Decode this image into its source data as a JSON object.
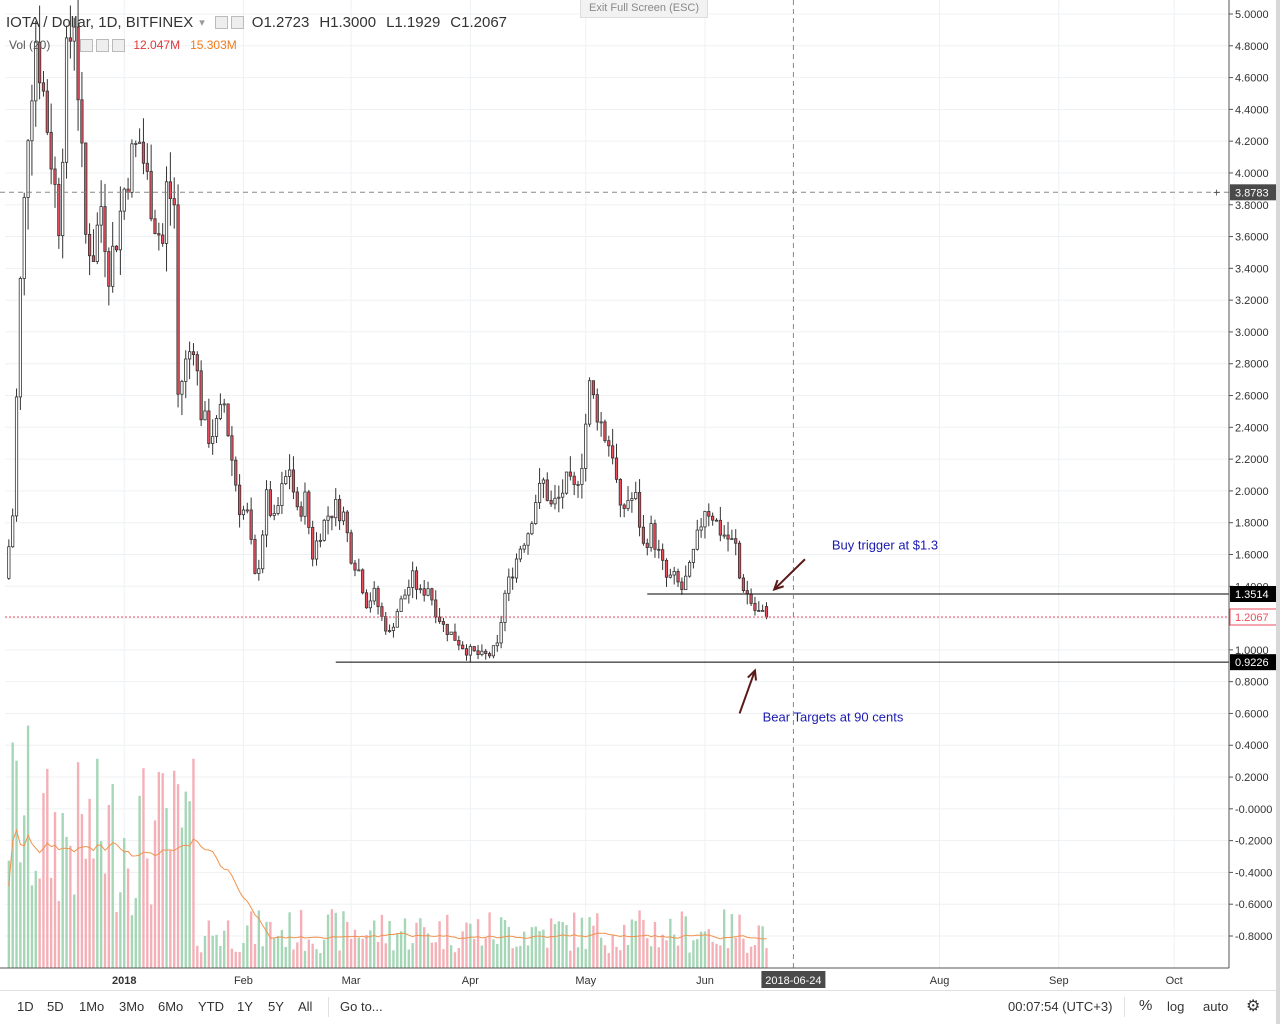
{
  "header": {
    "symbol": "IOTA / Dollar, 1D, BITFINEX",
    "open": "O1.2723",
    "high": "H1.3000",
    "low": "L1.1929",
    "close": "C1.2067"
  },
  "volume_legend": {
    "label": "Vol (20)",
    "value1": "12.047M",
    "value2": "15.303M"
  },
  "exit_fullscreen": "Exit Full Screen (ESC)",
  "bottom_bar": {
    "ranges": [
      "1D",
      "5D",
      "1Mo",
      "3Mo",
      "6Mo",
      "YTD",
      "1Y",
      "5Y",
      "All"
    ],
    "goto": "Go to...",
    "clock": "00:07:54 (UTC+3)",
    "percent": "%",
    "log": "log",
    "auto": "auto"
  },
  "colors": {
    "up": "#53b987",
    "down": "#eb4d5c",
    "candle_body_up": "#ffffff",
    "candle_outline": "#333333",
    "annotation": "#1a1ab0",
    "arrow": "#5a1a1a",
    "vol_up": "#a5d6b6",
    "vol_down": "#f4b0b6",
    "ma": "#f0924c"
  },
  "chart_data": {
    "type": "candlestick",
    "symbol": "IOTA / Dollar",
    "interval": "1D",
    "exchange": "BITFINEX",
    "y_axis_ticks": [
      "5.0000",
      "4.8000",
      "4.6000",
      "4.4000",
      "4.2000",
      "4.0000",
      "3.8000",
      "3.6000",
      "3.4000",
      "3.2000",
      "3.0000",
      "2.8000",
      "2.6000",
      "2.4000",
      "2.2000",
      "2.0000",
      "1.8000",
      "1.6000",
      "1.4000",
      "1.2000",
      "1.0000",
      "0.8000",
      "0.6000",
      "0.4000",
      "0.2000",
      "-0.0000",
      "-0.2000",
      "-0.4000",
      "-0.6000",
      "-0.8000"
    ],
    "y_axis_values": [
      5.0,
      4.8,
      4.6,
      4.4,
      4.2,
      4.0,
      3.8,
      3.6,
      3.4,
      3.2,
      3.0,
      2.8,
      2.6,
      2.4,
      2.2,
      2.0,
      1.8,
      1.6,
      1.4,
      1.2,
      1.0,
      0.8,
      0.6,
      0.4,
      0.2,
      0.0,
      -0.2,
      -0.4,
      -0.6,
      -0.8
    ],
    "ylim": [
      -0.9,
      5.05
    ],
    "x_axis_labels": [
      "2018",
      "Feb",
      "Mar",
      "Apr",
      "May",
      "Jun",
      "Aug",
      "Sep",
      "Oct"
    ],
    "x_axis_label_dates": [
      "2018-01-01",
      "2018-02-01",
      "2018-03-01",
      "2018-04-01",
      "2018-05-01",
      "2018-06-01",
      "2018-08-01",
      "2018-09-01",
      "2018-10-01"
    ],
    "x_range": [
      "2017-12-01",
      "2018-10-15"
    ],
    "crosshair": {
      "date_label": "2018-06-24",
      "price_label": "3.8783",
      "price": 3.8783
    },
    "price_labels": [
      {
        "value": 1.3514,
        "text": "1.3514",
        "style": "dark"
      },
      {
        "value": 1.2067,
        "text": "1.2067",
        "style": "red"
      },
      {
        "value": 0.9226,
        "text": "0.9226",
        "style": "dark"
      }
    ],
    "horizontal_lines": [
      {
        "value": 1.3514,
        "from_date": "2018-05-17",
        "to_date": "2018-10-15",
        "color": "#000000"
      },
      {
        "value": 0.9226,
        "from_date": "2018-02-25",
        "to_date": "2018-10-15",
        "color": "#000000"
      },
      {
        "value": 1.2067,
        "from_date": "2017-12-01",
        "to_date": "2018-10-15",
        "color": "#eb4d5c",
        "dashed": true
      }
    ],
    "annotations": [
      {
        "text": "Buy trigger at $1.3",
        "date": "2018-07-04",
        "price": 1.63
      },
      {
        "text": "Bear Targets at 90 cents",
        "date": "2018-06-16",
        "price": 0.55
      }
    ],
    "arrows": [
      {
        "from_date": "2018-06-27",
        "from_price": 1.57,
        "to_date": "2018-06-19",
        "to_price": 1.38
      },
      {
        "from_date": "2018-06-10",
        "from_price": 0.6,
        "to_date": "2018-06-14",
        "to_price": 0.87
      }
    ],
    "volume_ma_label": "Vol (20)",
    "volume_values_label": [
      "12.047M",
      "15.303M"
    ],
    "anchor_points": [
      [
        "2017-12-02",
        1.45
      ],
      [
        "2017-12-04",
        1.85
      ],
      [
        "2017-12-06",
        3.3
      ],
      [
        "2017-12-08",
        4.3
      ],
      [
        "2017-12-10",
        4.85
      ],
      [
        "2017-12-12",
        4.5
      ],
      [
        "2017-12-14",
        4.1
      ],
      [
        "2017-12-16",
        3.7
      ],
      [
        "2017-12-18",
        4.7
      ],
      [
        "2017-12-20",
        5.0
      ],
      [
        "2017-12-23",
        3.6
      ],
      [
        "2017-12-25",
        3.5
      ],
      [
        "2017-12-27",
        3.8
      ],
      [
        "2017-12-29",
        3.4
      ],
      [
        "2017-12-31",
        3.6
      ],
      [
        "2018-01-02",
        3.9
      ],
      [
        "2018-01-04",
        4.1
      ],
      [
        "2018-01-06",
        4.2
      ],
      [
        "2018-01-08",
        3.95
      ],
      [
        "2018-01-10",
        3.7
      ],
      [
        "2018-01-12",
        3.55
      ],
      [
        "2018-01-13",
        3.9
      ],
      [
        "2018-01-15",
        3.8
      ],
      [
        "2018-01-16",
        2.6
      ],
      [
        "2018-01-18",
        2.8
      ],
      [
        "2018-01-20",
        2.95
      ],
      [
        "2018-01-22",
        2.5
      ],
      [
        "2018-01-24",
        2.35
      ],
      [
        "2018-01-26",
        2.4
      ],
      [
        "2018-01-28",
        2.55
      ],
      [
        "2018-01-30",
        2.2
      ],
      [
        "2018-02-01",
        1.9
      ],
      [
        "2018-02-03",
        1.85
      ],
      [
        "2018-02-05",
        1.45
      ],
      [
        "2018-02-06",
        1.55
      ],
      [
        "2018-02-08",
        1.95
      ],
      [
        "2018-02-10",
        1.8
      ],
      [
        "2018-02-12",
        2.0
      ],
      [
        "2018-02-14",
        2.15
      ],
      [
        "2018-02-16",
        1.85
      ],
      [
        "2018-02-18",
        1.95
      ],
      [
        "2018-02-20",
        1.6
      ],
      [
        "2018-02-22",
        1.75
      ],
      [
        "2018-02-24",
        1.85
      ],
      [
        "2018-02-26",
        1.9
      ],
      [
        "2018-02-28",
        1.85
      ],
      [
        "2018-03-02",
        1.6
      ],
      [
        "2018-03-04",
        1.5
      ],
      [
        "2018-03-06",
        1.3
      ],
      [
        "2018-03-08",
        1.35
      ],
      [
        "2018-03-10",
        1.2
      ],
      [
        "2018-03-12",
        1.1
      ],
      [
        "2018-03-14",
        1.25
      ],
      [
        "2018-03-16",
        1.35
      ],
      [
        "2018-03-18",
        1.45
      ],
      [
        "2018-03-20",
        1.35
      ],
      [
        "2018-03-22",
        1.4
      ],
      [
        "2018-03-24",
        1.25
      ],
      [
        "2018-03-26",
        1.15
      ],
      [
        "2018-03-28",
        1.1
      ],
      [
        "2018-03-30",
        1.05
      ],
      [
        "2018-04-01",
        1.0
      ],
      [
        "2018-04-03",
        0.98
      ],
      [
        "2018-04-05",
        0.96
      ],
      [
        "2018-04-07",
        0.97
      ],
      [
        "2018-04-09",
        1.02
      ],
      [
        "2018-04-11",
        1.35
      ],
      [
        "2018-04-13",
        1.5
      ],
      [
        "2018-04-15",
        1.65
      ],
      [
        "2018-04-17",
        1.75
      ],
      [
        "2018-04-19",
        1.95
      ],
      [
        "2018-04-21",
        2.05
      ],
      [
        "2018-04-23",
        1.9
      ],
      [
        "2018-04-25",
        1.95
      ],
      [
        "2018-04-27",
        2.05
      ],
      [
        "2018-04-29",
        2.0
      ],
      [
        "2018-05-01",
        2.2
      ],
      [
        "2018-05-03",
        2.65
      ],
      [
        "2018-05-05",
        2.5
      ],
      [
        "2018-05-07",
        2.35
      ],
      [
        "2018-05-09",
        2.25
      ],
      [
        "2018-05-11",
        1.85
      ],
      [
        "2018-05-13",
        1.95
      ],
      [
        "2018-05-15",
        1.95
      ],
      [
        "2018-05-17",
        1.65
      ],
      [
        "2018-05-19",
        1.75
      ],
      [
        "2018-05-21",
        1.6
      ],
      [
        "2018-05-23",
        1.45
      ],
      [
        "2018-05-25",
        1.45
      ],
      [
        "2018-05-27",
        1.38
      ],
      [
        "2018-05-29",
        1.5
      ],
      [
        "2018-05-31",
        1.7
      ],
      [
        "2018-06-02",
        1.9
      ],
      [
        "2018-06-04",
        1.85
      ],
      [
        "2018-06-06",
        1.75
      ],
      [
        "2018-06-08",
        1.7
      ],
      [
        "2018-06-10",
        1.65
      ],
      [
        "2018-06-11",
        1.45
      ],
      [
        "2018-06-13",
        1.35
      ],
      [
        "2018-06-15",
        1.25
      ],
      [
        "2018-06-17",
        1.22
      ],
      [
        "2018-06-18",
        1.2067
      ]
    ]
  }
}
